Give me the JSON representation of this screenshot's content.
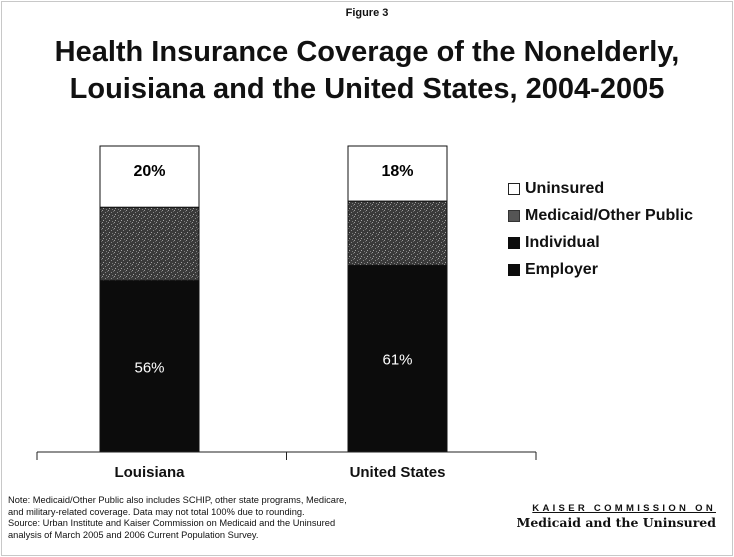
{
  "figure_label": "Figure 3",
  "title_line1": "Health Insurance Coverage of the Nonelderly,",
  "title_line2": "Louisiana and the United States, 2004-2005",
  "colors": {
    "employer": "#0c0c0c",
    "individual": "#0c0c0c",
    "medicaid": "#3a3a3a",
    "uninsured": "#ffffff"
  },
  "legend": [
    {
      "label": "Uninsured",
      "color": "#ffffff",
      "icon": "white-square"
    },
    {
      "label": "Medicaid/Other Public",
      "color": "#3a3a3a",
      "icon": "gray-square"
    },
    {
      "label": "Individual",
      "color": "#0c0c0c",
      "icon": "black-square"
    },
    {
      "label": "Employer",
      "color": "#0c0c0c",
      "icon": "black-square"
    }
  ],
  "chart_data": {
    "type": "bar",
    "stacked": true,
    "categories": [
      "Louisiana",
      "United States"
    ],
    "series": [
      {
        "name": "Employer",
        "values": [
          56,
          61
        ],
        "labels": [
          "56%",
          "61%"
        ]
      },
      {
        "name": "Individual",
        "values": [
          0,
          0
        ],
        "labels": [
          "",
          ""
        ]
      },
      {
        "name": "Medicaid/Other Public",
        "values": [
          24,
          21
        ],
        "labels": [
          "",
          ""
        ]
      },
      {
        "name": "Uninsured",
        "values": [
          20,
          18
        ],
        "labels": [
          "20%",
          "18%"
        ]
      }
    ],
    "ylim": [
      0,
      100
    ],
    "grid": false,
    "legend_position": "right"
  },
  "footnote": [
    "Note: Medicaid/Other Public also includes SCHIP, other state programs, Medicare,",
    "and military-related coverage.  Data may not  total 100% due to rounding.",
    "Source: Urban Institute and Kaiser Commission on Medicaid and the Uninsured",
    "analysis of March 2005 and 2006 Current Population Survey."
  ],
  "branding": {
    "line1": "KAISER COMMISSION ON",
    "line2": "Medicaid and the Uninsured"
  }
}
